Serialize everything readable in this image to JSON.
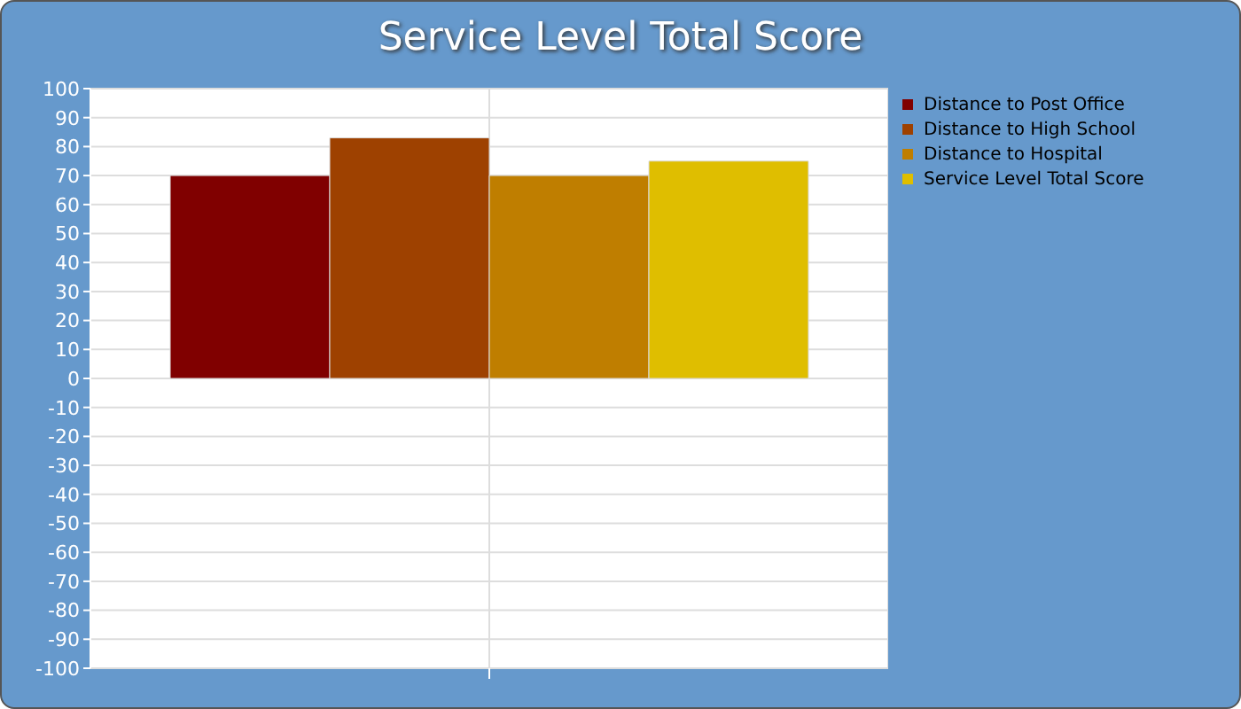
{
  "chart_data": {
    "type": "bar",
    "title": "Service Level Total Score",
    "categories": [
      null
    ],
    "series": [
      {
        "name": "Distance to Post Office",
        "color": "#800000",
        "values": [
          70
        ]
      },
      {
        "name": "Distance to High School",
        "color": "#9e4100",
        "values": [
          83
        ]
      },
      {
        "name": "Distance to Hospital",
        "color": "#bf7e00",
        "values": [
          70
        ]
      },
      {
        "name": "Service Level Total Score",
        "color": "#dfbe00",
        "values": [
          75
        ]
      }
    ],
    "ylim": [
      -100,
      100
    ],
    "yticks": [
      -100,
      -90,
      -80,
      -70,
      -60,
      -50,
      -40,
      -30,
      -20,
      -10,
      0,
      10,
      20,
      30,
      40,
      50,
      60,
      70,
      80,
      90,
      100
    ],
    "grid": true,
    "legend": "top right"
  }
}
